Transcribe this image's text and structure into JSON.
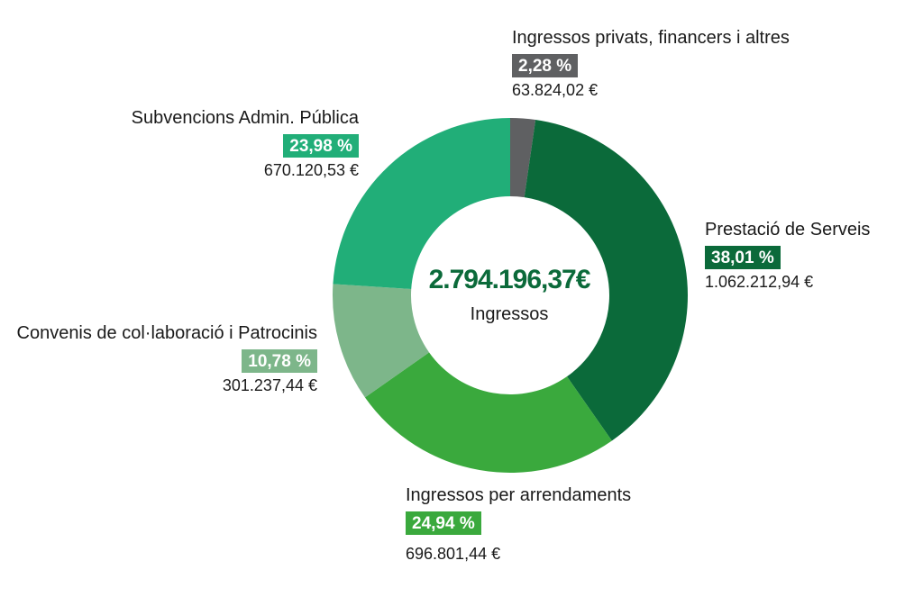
{
  "chart_data": {
    "type": "pie",
    "center": {
      "total": "2.794.196,37€",
      "label": "Ingressos"
    },
    "slices": [
      {
        "name": "Ingressos privats, financers i altres",
        "percent": 2.28,
        "percent_label": "2,28 %",
        "amount": "63.824,02 €",
        "color": "#5f6062"
      },
      {
        "name": "Prestació de Serveis",
        "percent": 38.01,
        "percent_label": "38,01 %",
        "amount": "1.062.212,94 €",
        "color": "#0b6a3a"
      },
      {
        "name": "Ingressos per arrendaments",
        "percent": 24.94,
        "percent_label": "24,94 %",
        "amount": "696.801,44 €",
        "color": "#3aa93d"
      },
      {
        "name": "Convenis de col·laboració i Patrocinis",
        "percent": 10.78,
        "percent_label": "10,78 %",
        "amount": "301.237,44 €",
        "color": "#7db68a"
      },
      {
        "name": "Subvencions Admin. Pública",
        "percent": 23.98,
        "percent_label": "23,98 %",
        "amount": "670.120,53 €",
        "color": "#21ae78"
      }
    ]
  }
}
